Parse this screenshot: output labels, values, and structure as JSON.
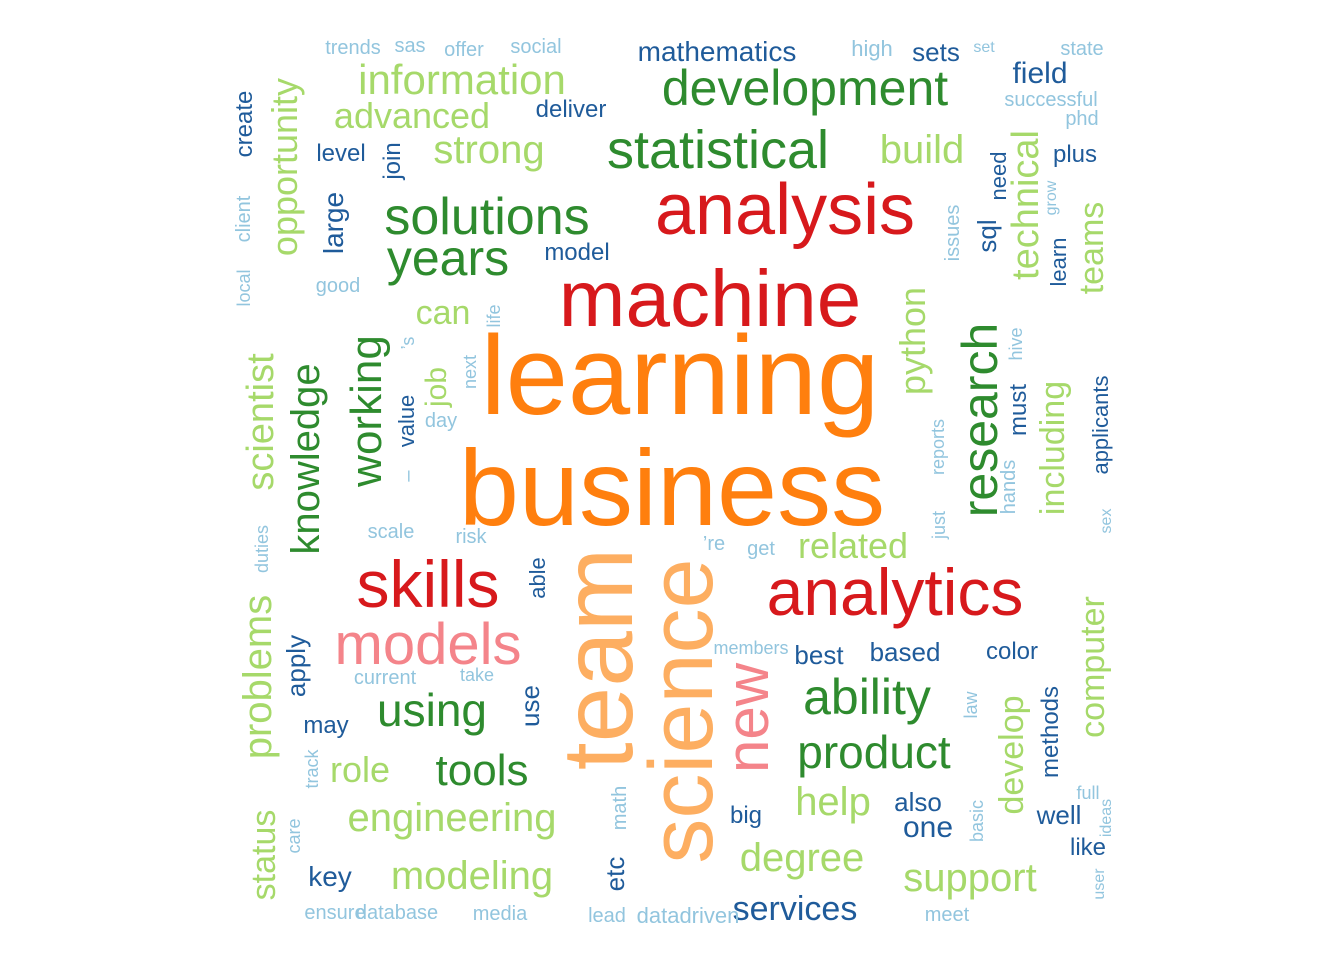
{
  "palette": {
    "red": "#d7191c",
    "orange": "#ff7f0e",
    "peach": "#fdae61",
    "pink": "#f4848a",
    "dark_green": "#2e8b2e",
    "light_green": "#a6d96a",
    "dark_blue": "#1f5b9a",
    "light_blue": "#92c5de"
  },
  "words": [
    {
      "text": "business",
      "color": "orange"
    },
    {
      "text": "learning",
      "color": "orange"
    },
    {
      "text": "team",
      "color": "peach"
    },
    {
      "text": "science",
      "color": "peach"
    },
    {
      "text": "machine",
      "color": "red"
    },
    {
      "text": "analysis",
      "color": "red"
    },
    {
      "text": "analytics",
      "color": "red"
    },
    {
      "text": "skills",
      "color": "red"
    },
    {
      "text": "models",
      "color": "pink"
    },
    {
      "text": "new",
      "color": "pink"
    },
    {
      "text": "development",
      "color": "dark_green"
    },
    {
      "text": "statistical",
      "color": "dark_green"
    },
    {
      "text": "solutions",
      "color": "dark_green"
    },
    {
      "text": "years",
      "color": "dark_green"
    },
    {
      "text": "research",
      "color": "dark_green"
    },
    {
      "text": "ability",
      "color": "dark_green"
    },
    {
      "text": "product",
      "color": "dark_green"
    },
    {
      "text": "using",
      "color": "dark_green"
    },
    {
      "text": "tools",
      "color": "dark_green"
    },
    {
      "text": "knowledge",
      "color": "dark_green"
    },
    {
      "text": "working",
      "color": "dark_green"
    },
    {
      "text": "information",
      "color": "light_green"
    },
    {
      "text": "advanced",
      "color": "light_green"
    },
    {
      "text": "strong",
      "color": "light_green"
    },
    {
      "text": "build",
      "color": "light_green"
    },
    {
      "text": "opportunity",
      "color": "light_green"
    },
    {
      "text": "technical",
      "color": "light_green"
    },
    {
      "text": "teams",
      "color": "light_green"
    },
    {
      "text": "python",
      "color": "light_green"
    },
    {
      "text": "including",
      "color": "light_green"
    },
    {
      "text": "scientist",
      "color": "light_green"
    },
    {
      "text": "can",
      "color": "light_green"
    },
    {
      "text": "job",
      "color": "light_green"
    },
    {
      "text": "related",
      "color": "light_green"
    },
    {
      "text": "problems",
      "color": "light_green"
    },
    {
      "text": "status",
      "color": "light_green"
    },
    {
      "text": "computer",
      "color": "light_green"
    },
    {
      "text": "develop",
      "color": "light_green"
    },
    {
      "text": "engineering",
      "color": "light_green"
    },
    {
      "text": "role",
      "color": "light_green"
    },
    {
      "text": "help",
      "color": "light_green"
    },
    {
      "text": "degree",
      "color": "light_green"
    },
    {
      "text": "modeling",
      "color": "light_green"
    },
    {
      "text": "support",
      "color": "light_green"
    },
    {
      "text": "mathematics",
      "color": "dark_blue"
    },
    {
      "text": "sets",
      "color": "dark_blue"
    },
    {
      "text": "field",
      "color": "dark_blue"
    },
    {
      "text": "deliver",
      "color": "dark_blue"
    },
    {
      "text": "create",
      "color": "dark_blue"
    },
    {
      "text": "level",
      "color": "dark_blue"
    },
    {
      "text": "join",
      "color": "dark_blue"
    },
    {
      "text": "large",
      "color": "dark_blue"
    },
    {
      "text": "plus",
      "color": "dark_blue"
    },
    {
      "text": "need",
      "color": "dark_blue"
    },
    {
      "text": "sql",
      "color": "dark_blue"
    },
    {
      "text": "learn",
      "color": "dark_blue"
    },
    {
      "text": "model",
      "color": "dark_blue"
    },
    {
      "text": "value",
      "color": "dark_blue"
    },
    {
      "text": "must",
      "color": "dark_blue"
    },
    {
      "text": "applicants",
      "color": "dark_blue"
    },
    {
      "text": "able",
      "color": "dark_blue"
    },
    {
      "text": "best",
      "color": "dark_blue"
    },
    {
      "text": "based",
      "color": "dark_blue"
    },
    {
      "text": "color",
      "color": "dark_blue"
    },
    {
      "text": "apply",
      "color": "dark_blue"
    },
    {
      "text": "use",
      "color": "dark_blue"
    },
    {
      "text": "may",
      "color": "dark_blue"
    },
    {
      "text": "methods",
      "color": "dark_blue"
    },
    {
      "text": "also",
      "color": "dark_blue"
    },
    {
      "text": "one",
      "color": "dark_blue"
    },
    {
      "text": "big",
      "color": "dark_blue"
    },
    {
      "text": "well",
      "color": "dark_blue"
    },
    {
      "text": "like",
      "color": "dark_blue"
    },
    {
      "text": "etc",
      "color": "dark_blue"
    },
    {
      "text": "key",
      "color": "dark_blue"
    },
    {
      "text": "services",
      "color": "dark_blue"
    },
    {
      "text": "trends",
      "color": "light_blue"
    },
    {
      "text": "sas",
      "color": "light_blue"
    },
    {
      "text": "offer",
      "color": "light_blue"
    },
    {
      "text": "social",
      "color": "light_blue"
    },
    {
      "text": "high",
      "color": "light_blue"
    },
    {
      "text": "set",
      "color": "light_blue"
    },
    {
      "text": "state",
      "color": "light_blue"
    },
    {
      "text": "successful",
      "color": "light_blue"
    },
    {
      "text": "phd",
      "color": "light_blue"
    },
    {
      "text": "client",
      "color": "light_blue"
    },
    {
      "text": "local",
      "color": "light_blue"
    },
    {
      "text": "good",
      "color": "light_blue"
    },
    {
      "text": "issues",
      "color": "light_blue"
    },
    {
      "text": "grow",
      "color": "light_blue"
    },
    {
      "text": "life",
      "color": "light_blue"
    },
    {
      "text": "’s",
      "color": "light_blue"
    },
    {
      "text": "next",
      "color": "light_blue"
    },
    {
      "text": "day",
      "color": "light_blue"
    },
    {
      "text": "hive",
      "color": "light_blue"
    },
    {
      "text": "–",
      "color": "light_blue"
    },
    {
      "text": "’re",
      "color": "light_blue"
    },
    {
      "text": "get",
      "color": "light_blue"
    },
    {
      "text": "reports",
      "color": "light_blue"
    },
    {
      "text": "hands",
      "color": "light_blue"
    },
    {
      "text": "just",
      "color": "light_blue"
    },
    {
      "text": "sex",
      "color": "light_blue"
    },
    {
      "text": "scale",
      "color": "light_blue"
    },
    {
      "text": "risk",
      "color": "light_blue"
    },
    {
      "text": "duties",
      "color": "light_blue"
    },
    {
      "text": "members",
      "color": "light_blue"
    },
    {
      "text": "current",
      "color": "light_blue"
    },
    {
      "text": "take",
      "color": "light_blue"
    },
    {
      "text": "law",
      "color": "light_blue"
    },
    {
      "text": "track",
      "color": "light_blue"
    },
    {
      "text": "full",
      "color": "light_blue"
    },
    {
      "text": "ideas",
      "color": "light_blue"
    },
    {
      "text": "care",
      "color": "light_blue"
    },
    {
      "text": "math",
      "color": "light_blue"
    },
    {
      "text": "basic",
      "color": "light_blue"
    },
    {
      "text": "user",
      "color": "light_blue"
    },
    {
      "text": "ensure",
      "color": "light_blue"
    },
    {
      "text": "database",
      "color": "light_blue"
    },
    {
      "text": "media",
      "color": "light_blue"
    },
    {
      "text": "lead",
      "color": "light_blue"
    },
    {
      "text": "datadriven",
      "color": "light_blue"
    },
    {
      "text": "meet",
      "color": "light_blue"
    }
  ]
}
